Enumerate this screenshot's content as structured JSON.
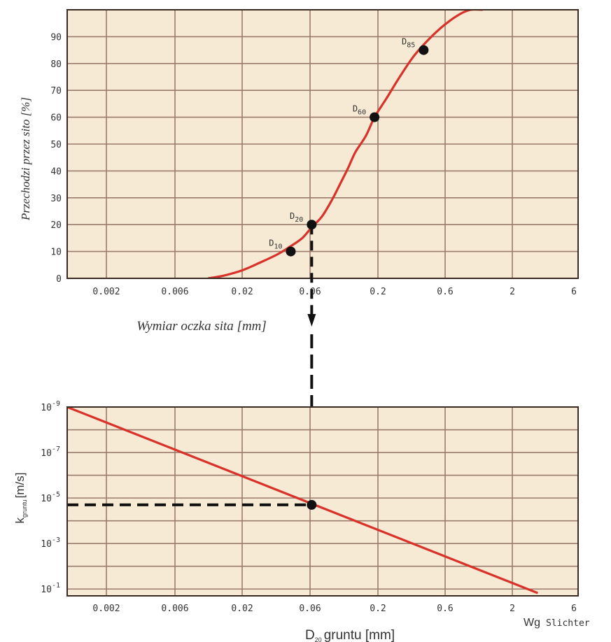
{
  "colors": {
    "plot_background": "#f7ead5",
    "grid": "#9b7b6b",
    "frame": "#3a2a22",
    "curve": "#d8322a",
    "marker": "#111111",
    "guide": "#111111",
    "text": "#333333"
  },
  "credit": {
    "prefix": "Wg",
    "name": "Slichter"
  },
  "chart_data": [
    {
      "type": "line",
      "title": "",
      "xlabel": "Wymiar oczka sita [mm]",
      "ylabel": "Przechodzi przez sito [%]",
      "x_scale": "log",
      "x_tick_labels": [
        "0.002",
        "0.006",
        "0.02",
        "0.06",
        "0.2",
        "0.6",
        "2",
        "6"
      ],
      "y_tick_labels": [
        "0",
        "10",
        "20",
        "30",
        "40",
        "50",
        "60",
        "70",
        "80",
        "90"
      ],
      "ylim": [
        0,
        100
      ],
      "grid": true,
      "series": [
        {
          "x": [
            0.009,
            0.012,
            0.017,
            0.024,
            0.033,
            0.042,
            0.052,
            0.062,
            0.075,
            0.09,
            0.105,
            0.122,
            0.14,
            0.17,
            0.2,
            0.25,
            0.32,
            0.42,
            0.55,
            0.72,
            0.95,
            1.2,
            1.5
          ],
          "y": [
            0,
            1,
            3,
            6,
            9,
            12,
            15,
            19,
            23,
            29,
            35,
            41,
            47,
            53,
            60,
            67,
            75,
            83,
            89,
            94,
            98,
            100,
            100
          ]
        }
      ],
      "points": [
        {
          "label": "D",
          "sub": "10",
          "x": 0.042,
          "y": 10
        },
        {
          "label": "D",
          "sub": "20",
          "x": 0.062,
          "y": 20
        },
        {
          "label": "D",
          "sub": "60",
          "x": 0.2,
          "y": 60
        },
        {
          "label": "D",
          "sub": "85",
          "x": 0.5,
          "y": 85
        }
      ]
    },
    {
      "type": "line",
      "title": "",
      "xlabel_main": "D",
      "xlabel_sub": "20",
      "xlabel_rest": "gruntu [mm]",
      "ylabel_main": "k",
      "ylabel_sub": "gruntu",
      "ylabel_rest": "[m/s]",
      "x_scale": "log",
      "y_scale": "log",
      "x_tick_labels": [
        "0.002",
        "0.006",
        "0.02",
        "0.06",
        "0.2",
        "0.6",
        "2",
        "6"
      ],
      "y_tick_labels": [
        {
          "base": "10",
          "exp": "-9"
        },
        {
          "base": "10",
          "exp": "-7"
        },
        {
          "base": "10",
          "exp": "-5"
        },
        {
          "base": "10",
          "exp": "-3"
        },
        {
          "base": "10",
          "exp": "-1"
        }
      ],
      "grid": true,
      "series": [
        {
          "x": [
            0.00065,
            4.2
          ],
          "k": [
            1e-09,
            0.15
          ]
        }
      ],
      "points": [
        {
          "x": 0.062,
          "k": 2e-05
        }
      ]
    }
  ]
}
